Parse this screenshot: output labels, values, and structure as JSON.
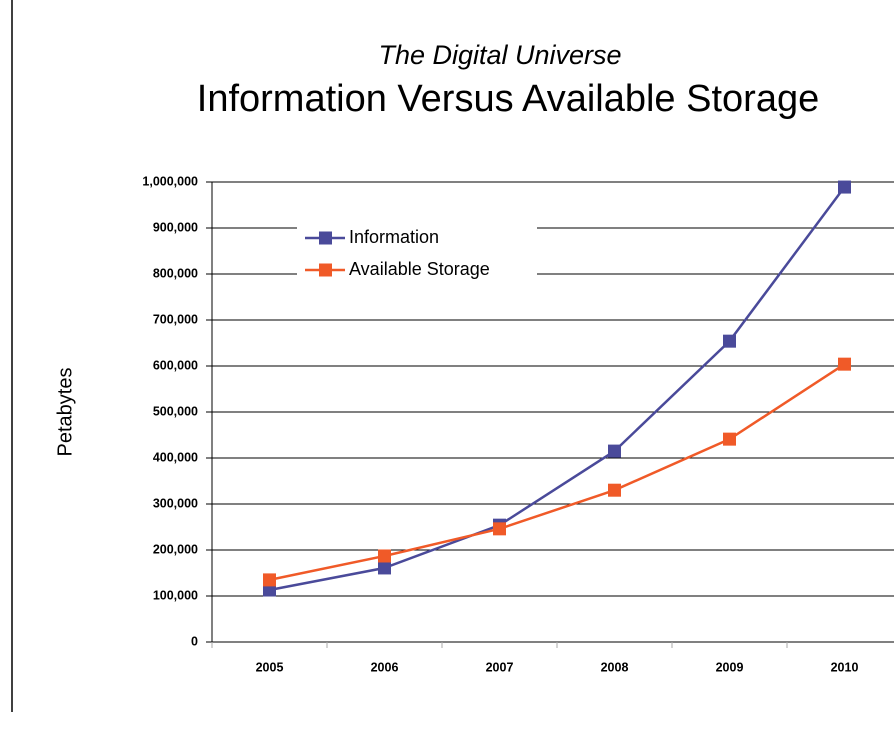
{
  "chart_data": {
    "type": "line",
    "subtitle": "The Digital Universe",
    "title": "Information Versus Available Storage",
    "y_label": "Petabytes",
    "categories": [
      "2005",
      "2006",
      "2007",
      "2008",
      "2009",
      "2010"
    ],
    "series": [
      {
        "name": "Information",
        "color": "#4a4a9a",
        "values": [
          113000,
          161000,
          254000,
          415000,
          654000,
          989000
        ]
      },
      {
        "name": "Available Storage",
        "color": "#f05a28",
        "values": [
          135000,
          187000,
          246000,
          330000,
          441000,
          604000
        ]
      }
    ],
    "ylim": [
      0,
      1000000
    ],
    "yticks": [
      0,
      {
        "value": 100000,
        "label": "100,000"
      },
      {
        "value": 200000,
        "label": "200,000"
      },
      {
        "value": 300000,
        "label": "300,000"
      },
      {
        "value": 400000,
        "label": "400,000"
      },
      {
        "value": 500000,
        "label": "500,000"
      },
      {
        "value": 600000,
        "label": "600,000"
      },
      {
        "value": 700000,
        "label": "700,000"
      },
      {
        "value": 800000,
        "label": "800,000"
      },
      {
        "value": 900000,
        "label": "900,000"
      },
      {
        "value": 1000000,
        "label": "1,000,000"
      }
    ],
    "grid": true,
    "legend": "upper left"
  }
}
